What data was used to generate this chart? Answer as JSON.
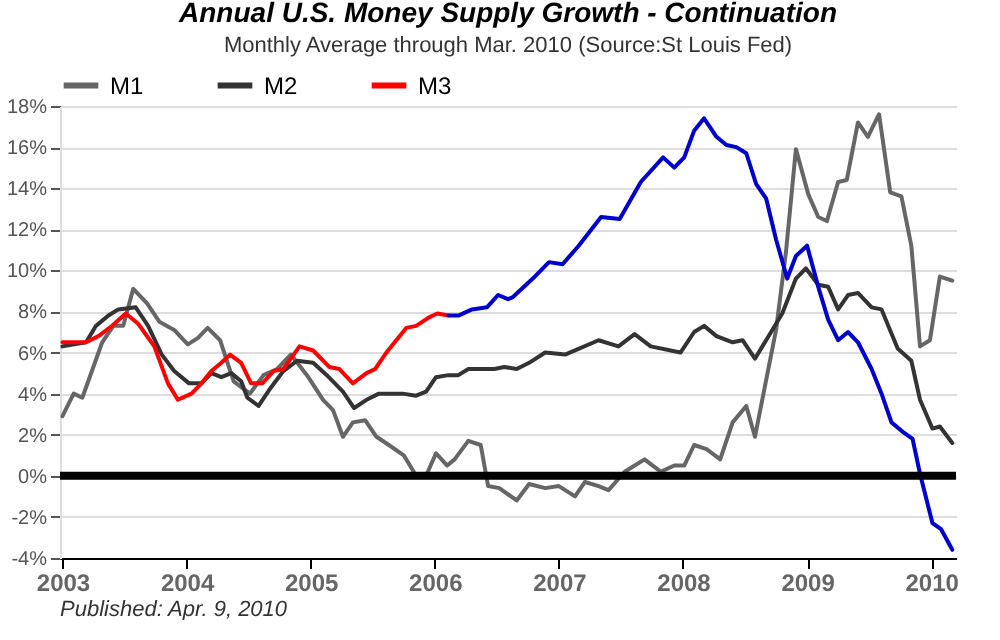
{
  "chart_data": {
    "type": "line",
    "title": "Annual U.S. Money Supply Growth - Continuation",
    "subtitle": "Monthly Average through Mar. 2010  (Source:St Louis Fed)",
    "xlim": [
      2002.98,
      2010.2
    ],
    "xticks": [
      2003,
      2004,
      2005,
      2006,
      2007,
      2008,
      2009,
      2010
    ],
    "ylim": [
      -4,
      18
    ],
    "yticks": [
      {
        "value": -4,
        "label": "-4%"
      },
      {
        "value": -2,
        "label": "-2%"
      },
      {
        "value": 0,
        "label": "0%"
      },
      {
        "value": 2,
        "label": "2%"
      },
      {
        "value": 4,
        "label": "4%"
      },
      {
        "value": 6,
        "label": "6%"
      },
      {
        "value": 8,
        "label": "8%"
      },
      {
        "value": 10,
        "label": "10%"
      },
      {
        "value": 12,
        "label": "12%"
      },
      {
        "value": 14,
        "label": "14%"
      },
      {
        "value": 16,
        "label": "16%"
      },
      {
        "value": 18,
        "label": "18%"
      }
    ],
    "grid": "y",
    "legend": "top",
    "marker": "none",
    "line_style": "solid",
    "ref_lines": [
      {
        "axis": "y",
        "value": 0,
        "color": "#000000"
      }
    ],
    "annotations": [
      "Published: Apr. 9, 2010"
    ],
    "series": [
      {
        "name": "M1",
        "color": "#666666",
        "x": [
          2003.0,
          2003.09,
          2003.16,
          2003.32,
          2003.41,
          2003.49,
          2003.57,
          2003.68,
          2003.78,
          2003.9,
          2004.01,
          2004.09,
          2004.17,
          2004.27,
          2004.33,
          2004.38,
          2004.51,
          2004.62,
          2004.73,
          2004.84,
          2004.97,
          2005.1,
          2005.18,
          2005.26,
          2005.34,
          2005.44,
          2005.53,
          2005.63,
          2005.75,
          2005.85,
          2005.93,
          2006.01,
          2006.1,
          2006.16,
          2006.27,
          2006.37,
          2006.43,
          2006.52,
          2006.66,
          2006.76,
          2006.89,
          2007.0,
          2007.13,
          2007.21,
          2007.32,
          2007.4,
          2007.53,
          2007.69,
          2007.82,
          2007.93,
          2008.01,
          2008.09,
          2008.19,
          2008.3,
          2008.4,
          2008.51,
          2008.58,
          2008.75,
          2008.83,
          2008.91,
          2009.01,
          2009.09,
          2009.16,
          2009.25,
          2009.32,
          2009.41,
          2009.49,
          2009.58,
          2009.67,
          2009.76,
          2009.84,
          2009.91,
          2009.99,
          2010.07,
          2010.17
        ],
        "values": [
          2.9,
          4.0,
          3.8,
          6.5,
          7.3,
          7.3,
          9.1,
          8.4,
          7.5,
          7.1,
          6.4,
          6.7,
          7.2,
          6.6,
          5.5,
          4.6,
          4.0,
          4.9,
          5.2,
          5.9,
          4.9,
          3.7,
          3.2,
          1.9,
          2.6,
          2.7,
          1.9,
          1.5,
          1.0,
          0.0,
          0.0,
          1.1,
          0.5,
          0.8,
          1.7,
          1.5,
          -0.5,
          -0.6,
          -1.2,
          -0.4,
          -0.6,
          -0.5,
          -1.0,
          -0.3,
          -0.5,
          -0.7,
          0.2,
          0.8,
          0.2,
          0.5,
          0.5,
          1.5,
          1.3,
          0.8,
          2.6,
          3.4,
          1.9,
          7.1,
          10.9,
          15.9,
          13.7,
          12.6,
          12.4,
          14.3,
          14.4,
          17.2,
          16.5,
          17.6,
          13.8,
          13.6,
          11.2,
          6.3,
          6.6,
          9.7,
          9.5
        ]
      },
      {
        "name": "M2",
        "color": "#333333",
        "x": [
          2003.0,
          2003.19,
          2003.27,
          2003.37,
          2003.45,
          2003.59,
          2003.69,
          2003.8,
          2003.9,
          2004.02,
          2004.12,
          2004.2,
          2004.28,
          2004.36,
          2004.44,
          2004.49,
          2004.58,
          2004.68,
          2004.78,
          2004.89,
          2005.02,
          2005.13,
          2005.26,
          2005.35,
          2005.45,
          2005.55,
          2005.74,
          2005.85,
          2005.93,
          2006.01,
          2006.11,
          2006.19,
          2006.27,
          2006.48,
          2006.56,
          2006.66,
          2006.76,
          2006.89,
          2007.05,
          2007.32,
          2007.48,
          2007.61,
          2007.74,
          2007.98,
          2008.09,
          2008.17,
          2008.27,
          2008.4,
          2008.48,
          2008.58,
          2008.67,
          2008.8,
          2008.91,
          2008.99,
          2009.09,
          2009.17,
          2009.25,
          2009.33,
          2009.41,
          2009.52,
          2009.6,
          2009.73,
          2009.84,
          2009.91,
          2010.01,
          2010.07,
          2010.17
        ],
        "values": [
          6.3,
          6.5,
          7.3,
          7.8,
          8.1,
          8.2,
          7.3,
          5.9,
          5.1,
          4.5,
          4.5,
          5.0,
          4.8,
          5.0,
          4.6,
          3.8,
          3.4,
          4.3,
          5.1,
          5.6,
          5.5,
          4.9,
          4.1,
          3.3,
          3.7,
          4.0,
          4.0,
          3.9,
          4.1,
          4.8,
          4.9,
          4.9,
          5.2,
          5.2,
          5.3,
          5.2,
          5.5,
          6.0,
          5.9,
          6.6,
          6.3,
          6.9,
          6.3,
          6.0,
          7.0,
          7.3,
          6.8,
          6.5,
          6.6,
          5.7,
          6.6,
          7.9,
          9.6,
          10.1,
          9.3,
          9.2,
          8.1,
          8.8,
          8.9,
          8.2,
          8.1,
          6.2,
          5.6,
          3.7,
          2.3,
          2.4,
          1.6
        ]
      },
      {
        "name": "M3",
        "color": "#ff0000",
        "x": [
          2003.0,
          2003.19,
          2003.29,
          2003.4,
          2003.51,
          2003.61,
          2003.74,
          2003.85,
          2003.93,
          2004.04,
          2004.12,
          2004.2,
          2004.28,
          2004.35,
          2004.44,
          2004.52,
          2004.61,
          2004.7,
          2004.78,
          2004.91,
          2005.02,
          2005.15,
          2005.23,
          2005.34,
          2005.45,
          2005.52,
          2005.61,
          2005.69,
          2005.77,
          2005.85,
          2005.95,
          2006.02,
          2006.11
        ],
        "values": [
          6.5,
          6.5,
          6.8,
          7.3,
          7.9,
          7.4,
          6.3,
          4.5,
          3.7,
          4.0,
          4.5,
          5.1,
          5.5,
          5.9,
          5.5,
          4.5,
          4.5,
          5.1,
          5.2,
          6.3,
          6.1,
          5.3,
          5.2,
          4.5,
          5.0,
          5.2,
          6.0,
          6.6,
          7.2,
          7.3,
          7.7,
          7.9,
          7.8
        ]
      },
      {
        "color": "#0000cc",
        "x": [
          2006.11,
          2006.19,
          2006.3,
          2006.42,
          2006.51,
          2006.59,
          2006.63,
          2006.79,
          2006.92,
          2007.03,
          2007.16,
          2007.34,
          2007.49,
          2007.66,
          2007.84,
          2007.93,
          2008.01,
          2008.09,
          2008.17,
          2008.27,
          2008.35,
          2008.43,
          2008.51,
          2008.59,
          2008.67,
          2008.75,
          2008.84,
          2008.91,
          2009.0,
          2009.09,
          2009.17,
          2009.25,
          2009.33,
          2009.41,
          2009.52,
          2009.6,
          2009.68,
          2009.78,
          2009.85,
          2009.91,
          2010.01,
          2010.08,
          2010.17
        ],
        "values": [
          7.8,
          7.8,
          8.1,
          8.2,
          8.8,
          8.6,
          8.7,
          9.6,
          10.4,
          10.3,
          11.2,
          12.6,
          12.5,
          14.3,
          15.5,
          15.0,
          15.5,
          16.8,
          17.4,
          16.5,
          16.1,
          16.0,
          15.7,
          14.2,
          13.5,
          11.5,
          9.6,
          10.7,
          11.2,
          9.2,
          7.6,
          6.6,
          7.0,
          6.5,
          5.2,
          4.0,
          2.6,
          2.1,
          1.8,
          0.1,
          -2.3,
          -2.6,
          -3.6
        ]
      }
    ]
  }
}
